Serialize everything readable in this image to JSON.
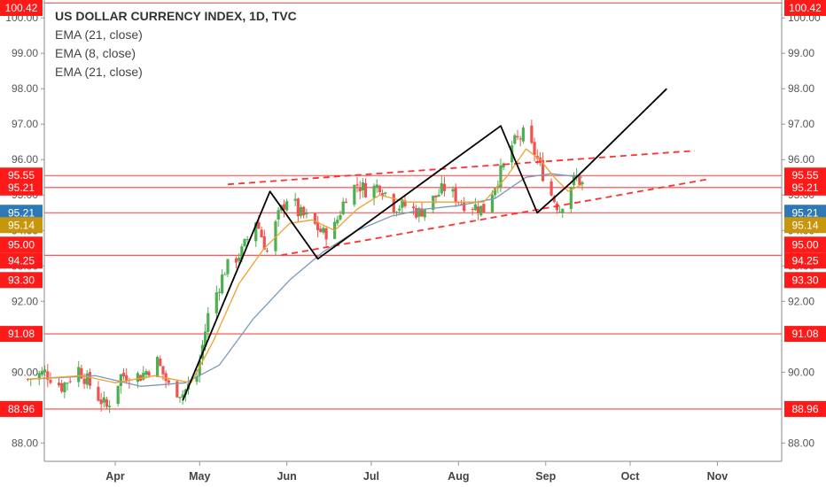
{
  "legend": {
    "title": "US DOLLAR CURRENCY INDEX, 1D, TVC",
    "studies": [
      "EMA (21, close)",
      "EMA (8, close)",
      "EMA (21, close)"
    ]
  },
  "colors": {
    "up": "#4caf50",
    "down": "#ef5350",
    "level": "#ff4040",
    "ema_fast": "#f0a030",
    "ema_slow": "#7a9ab8",
    "trend": "#000000",
    "channel": "#ff3030",
    "badge_red": "#ff1a1a",
    "badge_blue": "#2f78b7",
    "badge_gold": "#c8960c"
  },
  "chart_data": {
    "type": "candlestick",
    "title": "US DOLLAR CURRENCY INDEX, 1D, TVC",
    "xlabel": "",
    "ylabel": "",
    "ylim": [
      87.9,
      100.6
    ],
    "y_ticks": [
      "88.00",
      "90.00",
      "92.00",
      "93.00",
      "94.00",
      "95.00",
      "96.00",
      "97.00",
      "98.00",
      "99.00",
      "100.00"
    ],
    "month_ticks": [
      {
        "label": "Apr",
        "date": "2018-04-01"
      },
      {
        "label": "May",
        "date": "2018-05-01"
      },
      {
        "label": "Jun",
        "date": "2018-06-01"
      },
      {
        "label": "Jul",
        "date": "2018-07-01"
      },
      {
        "label": "Aug",
        "date": "2018-08-01"
      },
      {
        "label": "Sep",
        "date": "2018-09-01"
      },
      {
        "label": "Oct",
        "date": "2018-10-01"
      },
      {
        "label": "Nov",
        "date": "2018-11-01"
      }
    ],
    "price_anchors": [
      [
        "2018-03-01",
        89.8
      ],
      [
        "2018-03-07",
        90.0
      ],
      [
        "2018-03-13",
        89.6
      ],
      [
        "2018-03-19",
        90.1
      ],
      [
        "2018-03-26",
        89.3
      ],
      [
        "2018-03-29",
        89.0
      ],
      [
        "2018-04-03",
        89.9
      ],
      [
        "2018-04-10",
        89.9
      ],
      [
        "2018-04-16",
        90.3
      ],
      [
        "2018-04-20",
        89.6
      ],
      [
        "2018-04-25",
        89.4
      ],
      [
        "2018-04-30",
        89.9
      ],
      [
        "2018-05-04",
        91.6
      ],
      [
        "2018-05-10",
        92.9
      ],
      [
        "2018-05-16",
        93.4
      ],
      [
        "2018-05-21",
        94.3
      ],
      [
        "2018-05-25",
        93.4
      ],
      [
        "2018-05-29",
        94.4
      ],
      [
        "2018-06-02",
        95.1
      ],
      [
        "2018-06-05",
        94.5
      ],
      [
        "2018-06-09",
        94.3
      ],
      [
        "2018-06-14",
        93.9
      ],
      [
        "2018-06-18",
        94.1
      ],
      [
        "2018-06-22",
        95.0
      ],
      [
        "2018-06-26",
        95.3
      ],
      [
        "2018-06-30",
        95.1
      ],
      [
        "2018-07-04",
        95.3
      ],
      [
        "2018-07-09",
        94.7
      ],
      [
        "2018-07-13",
        94.7
      ],
      [
        "2018-07-18",
        94.5
      ],
      [
        "2018-07-22",
        94.8
      ],
      [
        "2018-07-27",
        95.2
      ],
      [
        "2018-08-02",
        94.8
      ],
      [
        "2018-08-06",
        94.7
      ],
      [
        "2018-08-10",
        94.6
      ],
      [
        "2018-08-14",
        95.3
      ],
      [
        "2018-08-17",
        95.8
      ],
      [
        "2018-08-20",
        96.4
      ],
      [
        "2018-08-24",
        96.7
      ],
      [
        "2018-08-28",
        96.2
      ],
      [
        "2018-08-31",
        95.6
      ],
      [
        "2018-09-03",
        95.0
      ],
      [
        "2018-09-06",
        94.6
      ],
      [
        "2018-09-09",
        95.2
      ],
      [
        "2018-09-12",
        95.5
      ],
      [
        "2018-09-14",
        95.3
      ]
    ],
    "ema_fast_points": [
      [
        "2018-03-01",
        89.8
      ],
      [
        "2018-03-20",
        89.9
      ],
      [
        "2018-04-01",
        89.7
      ],
      [
        "2018-04-15",
        89.9
      ],
      [
        "2018-04-28",
        89.7
      ],
      [
        "2018-05-06",
        90.9
      ],
      [
        "2018-05-15",
        92.5
      ],
      [
        "2018-05-24",
        93.5
      ],
      [
        "2018-06-02",
        94.2
      ],
      [
        "2018-06-10",
        94.3
      ],
      [
        "2018-06-18",
        94.0
      ],
      [
        "2018-06-26",
        94.6
      ],
      [
        "2018-07-04",
        95.0
      ],
      [
        "2018-07-14",
        94.8
      ],
      [
        "2018-07-24",
        94.8
      ],
      [
        "2018-08-02",
        94.8
      ],
      [
        "2018-08-10",
        94.8
      ],
      [
        "2018-08-18",
        95.5
      ],
      [
        "2018-08-25",
        96.3
      ],
      [
        "2018-08-30",
        96.0
      ],
      [
        "2018-09-04",
        95.5
      ],
      [
        "2018-09-09",
        95.1
      ],
      [
        "2018-09-14",
        95.3
      ]
    ],
    "ema_slow_points": [
      [
        "2018-03-01",
        89.8
      ],
      [
        "2018-03-25",
        89.9
      ],
      [
        "2018-04-10",
        89.6
      ],
      [
        "2018-04-26",
        89.7
      ],
      [
        "2018-05-08",
        90.2
      ],
      [
        "2018-05-20",
        91.5
      ],
      [
        "2018-06-02",
        92.6
      ],
      [
        "2018-06-14",
        93.4
      ],
      [
        "2018-06-26",
        94.0
      ],
      [
        "2018-07-08",
        94.4
      ],
      [
        "2018-07-20",
        94.6
      ],
      [
        "2018-08-01",
        94.7
      ],
      [
        "2018-08-14",
        94.9
      ],
      [
        "2018-08-25",
        95.5
      ],
      [
        "2018-09-03",
        95.6
      ],
      [
        "2018-09-14",
        95.5
      ]
    ],
    "horizontal_levels": [
      100.42,
      95.55,
      95.21,
      94.5,
      93.3,
      91.08,
      88.96
    ],
    "axis_badges": [
      {
        "label": "100.42",
        "value": 100.42,
        "color": "red"
      },
      {
        "label": "95.55",
        "value": 95.55,
        "color": "red"
      },
      {
        "label": "95.21",
        "value": 95.21,
        "color": "red"
      },
      {
        "label": "95.21",
        "value": 94.5,
        "color": "blue"
      },
      {
        "label": "95.14",
        "value": 94.15,
        "color": "gold"
      },
      {
        "label": "95.00",
        "value": 93.6,
        "color": "red"
      },
      {
        "label": "94.25",
        "value": 93.15,
        "color": "red"
      },
      {
        "label": "93.30",
        "value": 92.6,
        "color": "red"
      },
      {
        "label": "91.08",
        "value": 91.08,
        "color": "red"
      },
      {
        "label": "88.96",
        "value": 88.96,
        "color": "red"
      }
    ],
    "trend_lines": [
      {
        "points": [
          [
            "2018-04-25",
            89.2
          ],
          [
            "2018-05-26",
            95.1
          ],
          [
            "2018-06-12",
            93.2
          ],
          [
            "2018-08-16",
            96.95
          ],
          [
            "2018-08-29",
            94.5
          ],
          [
            "2018-09-10",
            95.35
          ],
          [
            "2018-10-14",
            98.0
          ]
        ]
      }
    ],
    "channel_lines": [
      {
        "points": [
          [
            "2018-05-11",
            95.3
          ],
          [
            "2018-10-24",
            96.25
          ]
        ]
      },
      {
        "points": [
          [
            "2018-05-30",
            93.3
          ],
          [
            "2018-10-29",
            95.45
          ]
        ]
      }
    ]
  }
}
